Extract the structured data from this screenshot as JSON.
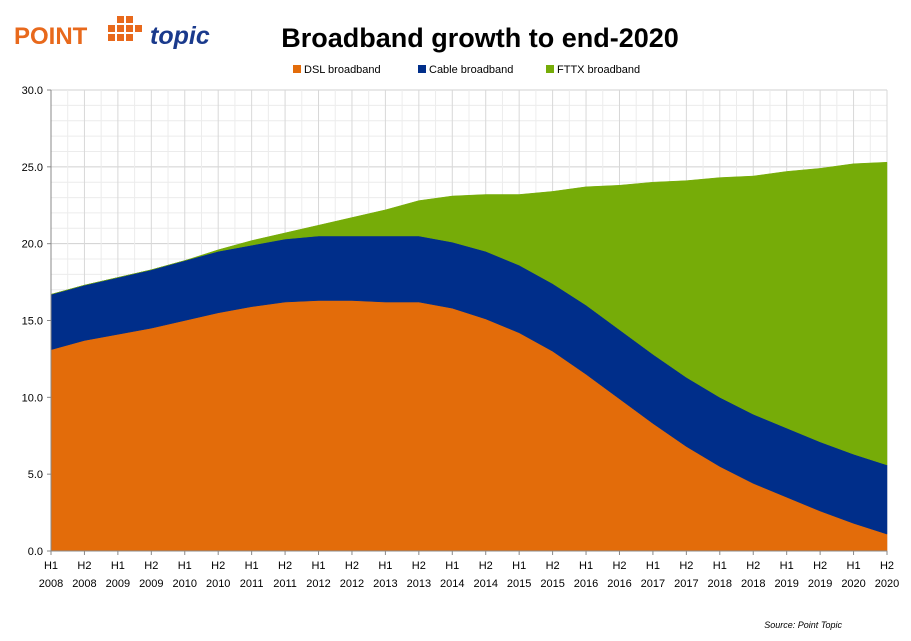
{
  "logo": {
    "word1": "POINT",
    "word2": "topic",
    "primary_color": "#e8691c",
    "secondary_color": "#1a3a8c"
  },
  "chart_data": {
    "type": "area",
    "stacked": true,
    "title": "Broadband growth to end-2020",
    "source": "Source: Point Topic",
    "ylim": [
      0,
      30
    ],
    "yticks": [
      "0.0",
      "5.0",
      "10.0",
      "15.0",
      "20.0",
      "25.0",
      "30.0"
    ],
    "grid": true,
    "legend_position": "top",
    "categories": [
      [
        "H1",
        "2008"
      ],
      [
        "H2",
        "2008"
      ],
      [
        "H1",
        "2009"
      ],
      [
        "H2",
        "2009"
      ],
      [
        "H1",
        "2010"
      ],
      [
        "H2",
        "2010"
      ],
      [
        "H1",
        "2011"
      ],
      [
        "H2",
        "2011"
      ],
      [
        "H1",
        "2012"
      ],
      [
        "H2",
        "2012"
      ],
      [
        "H1",
        "2013"
      ],
      [
        "H2",
        "2013"
      ],
      [
        "H1",
        "2014"
      ],
      [
        "H2",
        "2014"
      ],
      [
        "H1",
        "2015"
      ],
      [
        "H2",
        "2015"
      ],
      [
        "H1",
        "2016"
      ],
      [
        "H2",
        "2016"
      ],
      [
        "H1",
        "2017"
      ],
      [
        "H2",
        "2017"
      ],
      [
        "H1",
        "2018"
      ],
      [
        "H2",
        "2018"
      ],
      [
        "H1",
        "2019"
      ],
      [
        "H2",
        "2019"
      ],
      [
        "H1",
        "2020"
      ],
      [
        "H2",
        "2020"
      ]
    ],
    "series": [
      {
        "name": "DSL broadband",
        "color": "#e36c0a",
        "values": [
          13.1,
          13.7,
          14.1,
          14.5,
          15.0,
          15.5,
          15.9,
          16.2,
          16.3,
          16.3,
          16.2,
          16.2,
          15.8,
          15.1,
          14.2,
          13.0,
          11.5,
          9.9,
          8.3,
          6.8,
          5.5,
          4.4,
          3.5,
          2.6,
          1.8,
          1.1
        ]
      },
      {
        "name": "Cable broadband",
        "color": "#002e8a",
        "values": [
          3.6,
          3.6,
          3.7,
          3.8,
          3.9,
          4.0,
          4.0,
          4.1,
          4.2,
          4.2,
          4.3,
          4.3,
          4.3,
          4.4,
          4.4,
          4.4,
          4.5,
          4.5,
          4.5,
          4.5,
          4.5,
          4.5,
          4.5,
          4.5,
          4.5,
          4.5
        ]
      },
      {
        "name": "FTTX broadband",
        "color": "#76ac08",
        "values": [
          0.0,
          0.0,
          0.0,
          0.0,
          0.0,
          0.1,
          0.3,
          0.4,
          0.7,
          1.2,
          1.7,
          2.3,
          3.0,
          3.7,
          4.6,
          6.0,
          7.7,
          9.4,
          11.2,
          12.8,
          14.3,
          15.5,
          16.7,
          17.8,
          18.9,
          19.7
        ]
      }
    ]
  }
}
